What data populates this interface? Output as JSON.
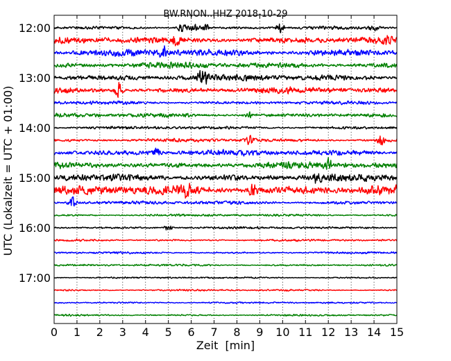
{
  "chart_data": {
    "type": "line",
    "title": "BW.RNON..HHZ 2018-10-29",
    "xlabel": "Zeit  [min]",
    "ylabel": "UTC (Lokalzeit = UTC + 01:00)",
    "xlim": [
      0,
      15
    ],
    "x_ticks": [
      0,
      1,
      2,
      3,
      4,
      5,
      6,
      7,
      8,
      9,
      10,
      11,
      12,
      13,
      14,
      15
    ],
    "x_tick_labels": [
      "0",
      "1",
      "2",
      "3",
      "4",
      "5",
      "6",
      "7",
      "8",
      "9",
      "10",
      "11",
      "12",
      "13",
      "14",
      "15"
    ],
    "y_ticks": [
      "12:00",
      "13:00",
      "14:00",
      "15:00",
      "16:00",
      "17:00"
    ],
    "vertical_grid": "dotted",
    "trace_colors": [
      "#000000",
      "#ff0000",
      "#0000ff",
      "#008000"
    ],
    "traces": [
      {
        "start": "12:00",
        "amplitude": 0.25,
        "bursts": [
          {
            "x": 5.6,
            "amp": 0.9
          },
          {
            "x": 6.1,
            "amp": 0.8
          },
          {
            "x": 6.6,
            "amp": 0.7
          },
          {
            "x": 9.9,
            "amp": 0.9
          },
          {
            "x": 14.0,
            "amp": 0.8
          }
        ]
      },
      {
        "start": "12:15",
        "amplitude": 0.55,
        "bursts": [
          {
            "x": 5.3,
            "amp": 0.9
          },
          {
            "x": 14.5,
            "amp": 0.9
          }
        ]
      },
      {
        "start": "12:30",
        "amplitude": 0.6,
        "bursts": [
          {
            "x": 4.8,
            "amp": 0.8
          }
        ]
      },
      {
        "start": "12:45",
        "amplitude": 0.5,
        "bursts": []
      },
      {
        "start": "13:00",
        "amplitude": 0.55,
        "bursts": [
          {
            "x": 6.5,
            "amp": 1.6
          }
        ]
      },
      {
        "start": "13:15",
        "amplitude": 0.5,
        "bursts": [
          {
            "x": 2.8,
            "amp": 1.3
          }
        ]
      },
      {
        "start": "13:30",
        "amplitude": 0.3,
        "bursts": []
      },
      {
        "start": "13:45",
        "amplitude": 0.35,
        "bursts": [
          {
            "x": 8.5,
            "amp": 0.6
          }
        ]
      },
      {
        "start": "14:00",
        "amplitude": 0.25,
        "bursts": []
      },
      {
        "start": "14:15",
        "amplitude": 0.3,
        "bursts": [
          {
            "x": 8.6,
            "amp": 1.1
          },
          {
            "x": 14.3,
            "amp": 0.8
          }
        ]
      },
      {
        "start": "14:30",
        "amplitude": 0.5,
        "bursts": [
          {
            "x": 4.5,
            "amp": 1.2
          }
        ]
      },
      {
        "start": "14:45",
        "amplitude": 0.55,
        "bursts": [
          {
            "x": 12.0,
            "amp": 1.0
          }
        ]
      },
      {
        "start": "15:00",
        "amplitude": 0.6,
        "bursts": [
          {
            "x": 11.5,
            "amp": 0.9
          }
        ]
      },
      {
        "start": "15:15",
        "amplitude": 0.8,
        "bursts": [
          {
            "x": 5.8,
            "amp": 1.3
          },
          {
            "x": 8.7,
            "amp": 1.1
          }
        ]
      },
      {
        "start": "15:30",
        "amplitude": 0.3,
        "bursts": [
          {
            "x": 0.8,
            "amp": 1.2
          }
        ]
      },
      {
        "start": "15:45",
        "amplitude": 0.2,
        "bursts": []
      },
      {
        "start": "16:00",
        "amplitude": 0.2,
        "bursts": [
          {
            "x": 5.0,
            "amp": 0.6
          }
        ]
      },
      {
        "start": "16:15",
        "amplitude": 0.18,
        "bursts": []
      },
      {
        "start": "16:30",
        "amplitude": 0.18,
        "bursts": []
      },
      {
        "start": "16:45",
        "amplitude": 0.18,
        "bursts": []
      },
      {
        "start": "17:00",
        "amplitude": 0.15,
        "bursts": []
      },
      {
        "start": "17:15",
        "amplitude": 0.15,
        "bursts": []
      },
      {
        "start": "17:30",
        "amplitude": 0.15,
        "bursts": []
      },
      {
        "start": "17:45",
        "amplitude": 0.15,
        "bursts": []
      }
    ]
  }
}
